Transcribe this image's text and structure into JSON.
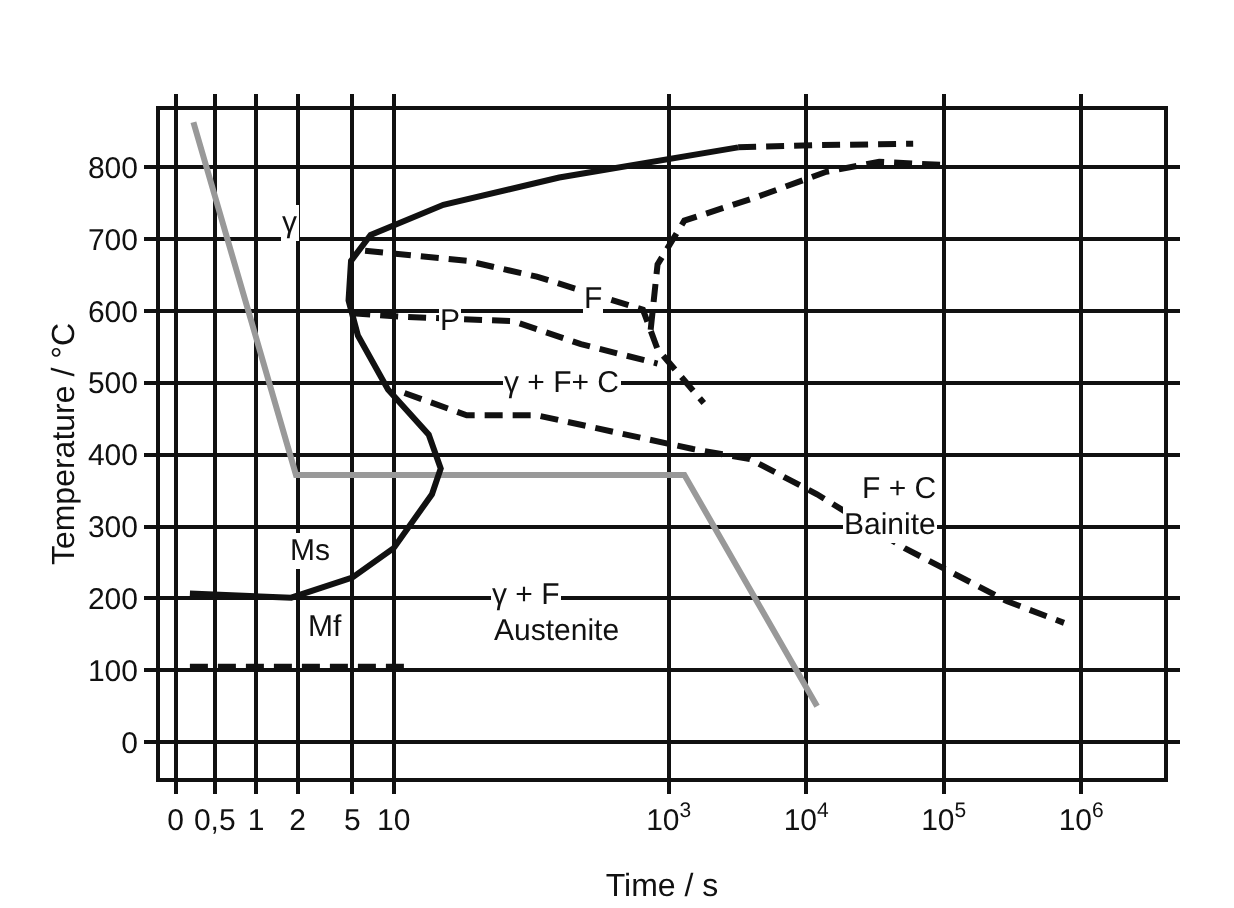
{
  "chart_data": {
    "type": "line",
    "xlabel": "Time / s",
    "ylabel": "Temperature / °C",
    "log": "x",
    "xlim": [
      0.2,
      4000000
    ],
    "ylim": [
      -50,
      880
    ],
    "xticks": [
      {
        "value": 0.26,
        "label": "0"
      },
      {
        "value": 0.5,
        "label": "0,5"
      },
      1,
      2,
      5,
      10,
      {
        "value": 1000,
        "label": "10$^{3}$"
      },
      {
        "value": 10000,
        "label": "10$^{4}$"
      },
      {
        "value": 100000,
        "label": "10$^{5}$"
      },
      {
        "value": 1000000,
        "label": "10$^{6}$"
      }
    ],
    "yticks": [
      0,
      100,
      200,
      300,
      400,
      500,
      600,
      700,
      800
    ],
    "grid": true,
    "marker": "none",
    "series": [
      {
        "color": "#999999",
        "line_style": "solid",
        "x": [
          0.35,
          1.95,
          1300,
          12000
        ],
        "values": [
          863,
          372,
          372,
          50
        ]
      },
      {
        "color": "#111111",
        "line_style": "solid",
        "x": [
          0.33,
          1.8,
          5,
          10,
          19,
          22,
          18,
          9.1,
          5.5,
          4.7,
          4.9,
          6.8,
          23,
          160,
          3200
        ],
        "values": [
          207,
          201,
          229,
          270,
          345,
          381,
          428,
          491,
          566,
          615,
          670,
          706,
          748,
          786,
          828
        ]
      },
      {
        "color": "#111111",
        "line_style": "dashed",
        "x": [
          3200,
          12000,
          60000
        ],
        "values": [
          828,
          831,
          833
        ]
      },
      {
        "color": "#111111",
        "line_style": "dashed",
        "x": [
          0.33,
          12
        ],
        "values": [
          105,
          105
        ]
      },
      {
        "color": "#111111",
        "line_style": "dashed",
        "x": [
          6.2,
          34,
          110,
          650,
          830,
          1800
        ],
        "values": [
          684,
          670,
          648,
          602,
          547,
          472
        ]
      },
      {
        "color": "#111111",
        "line_style": "dashed",
        "x": [
          5,
          12,
          74,
          230,
          830
        ],
        "values": [
          597,
          592,
          586,
          554,
          527
        ]
      },
      {
        "color": "#111111",
        "line_style": "dashed",
        "x": [
          12,
          34,
          110,
          1500,
          3900,
          12000,
          52000,
          290000,
          750000
        ],
        "values": [
          486,
          455,
          455,
          408,
          394,
          345,
          270,
          196,
          166
        ]
      },
      {
        "color": "#111111",
        "line_style": "dashed",
        "x": [
          740,
          830,
          1300,
          4400,
          14000,
          34000,
          110000
        ],
        "values": [
          574,
          665,
          726,
          759,
          794,
          808,
          803
        ]
      }
    ],
    "annotations": [
      "γ",
      "F",
      "P",
      "γ + F+ C",
      "F + C",
      "Bainite",
      "γ + F",
      "Austenite",
      "Ms",
      "Mf"
    ]
  }
}
